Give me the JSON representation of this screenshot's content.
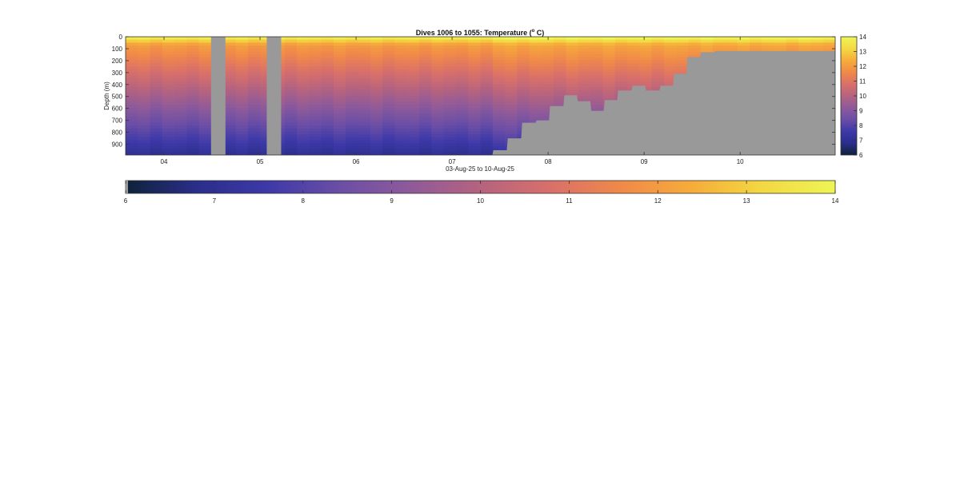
{
  "chart_data": {
    "type": "heatmap",
    "title": {
      "prefix": "Dives 1006 to 1055: Temperature (",
      "sup": "o",
      "suffix": " C)"
    },
    "xlabel": "03-Aug-25 to 10-Aug-25",
    "ylabel": "Depth (m)",
    "x_start_day": 3.6,
    "x_end_day": 10.99,
    "x_ticks": [
      "04",
      "05",
      "06",
      "07",
      "08",
      "09",
      "10"
    ],
    "x_tick_days": [
      4,
      5,
      6,
      7,
      8,
      9,
      10
    ],
    "y_ticks": [
      "0",
      "100",
      "200",
      "300",
      "400",
      "500",
      "600",
      "700",
      "800",
      "900"
    ],
    "y_tick_values": [
      0,
      100,
      200,
      300,
      400,
      500,
      600,
      700,
      800,
      900
    ],
    "ylim": [
      0,
      990
    ],
    "y_reversed": true,
    "gaps": [
      {
        "start_day": 4.49,
        "end_day": 4.64
      },
      {
        "start_day": 5.07,
        "end_day": 5.22
      }
    ],
    "seafloor_depth": [
      [
        3.6,
        990
      ],
      [
        7.42,
        990
      ],
      [
        7.43,
        950
      ],
      [
        7.57,
        950
      ],
      [
        7.58,
        850
      ],
      [
        7.72,
        850
      ],
      [
        7.73,
        720
      ],
      [
        7.87,
        720
      ],
      [
        7.88,
        700
      ],
      [
        8.01,
        700
      ],
      [
        8.02,
        580
      ],
      [
        8.16,
        580
      ],
      [
        8.17,
        490
      ],
      [
        8.3,
        490
      ],
      [
        8.31,
        540
      ],
      [
        8.44,
        540
      ],
      [
        8.45,
        620
      ],
      [
        8.58,
        620
      ],
      [
        8.59,
        530
      ],
      [
        8.72,
        530
      ],
      [
        8.73,
        450
      ],
      [
        8.87,
        450
      ],
      [
        8.88,
        410
      ],
      [
        9.01,
        410
      ],
      [
        9.02,
        450
      ],
      [
        9.16,
        450
      ],
      [
        9.17,
        410
      ],
      [
        9.3,
        410
      ],
      [
        9.31,
        310
      ],
      [
        9.44,
        310
      ],
      [
        9.45,
        170
      ],
      [
        9.58,
        170
      ],
      [
        9.59,
        130
      ],
      [
        9.73,
        130
      ],
      [
        9.74,
        120
      ],
      [
        10.99,
        120
      ]
    ],
    "nodata_color": "#999999",
    "colormap_stops": [
      "#0e2238",
      "#2a2e8a",
      "#3d39a8",
      "#6a4ea6",
      "#8e5a9a",
      "#b5637f",
      "#d9706a",
      "#f08a48",
      "#f6ad3a",
      "#f3d943",
      "#eef555"
    ],
    "colorbar_ticks": [
      "6",
      "7",
      "8",
      "9",
      "10",
      "11",
      "12",
      "13",
      "14"
    ],
    "colorbar_range": [
      6,
      14
    ]
  }
}
